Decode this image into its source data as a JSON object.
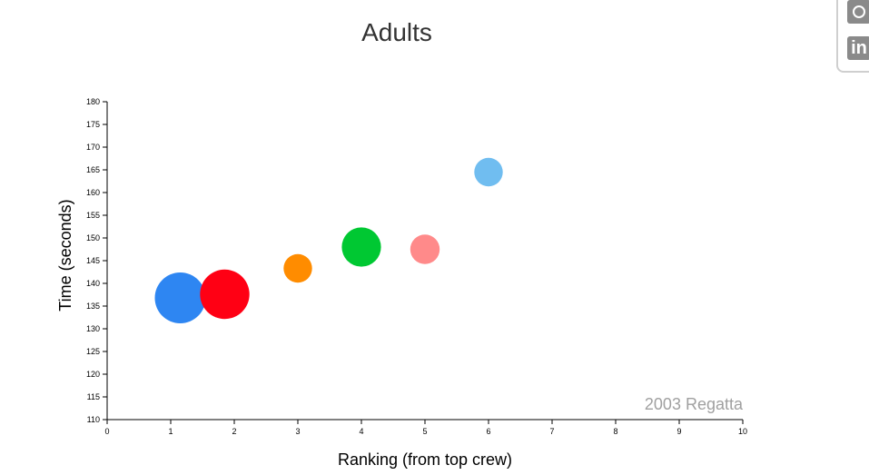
{
  "chart_data": {
    "type": "scatter",
    "title": "Adults",
    "xlabel": "Ranking (from top crew)",
    "ylabel": "Time (seconds)",
    "annotation": "2003 Regatta",
    "xlim": [
      0,
      10
    ],
    "ylim": [
      110,
      180
    ],
    "x_ticks": [
      0,
      1,
      2,
      3,
      4,
      5,
      6,
      7,
      8,
      9,
      10
    ],
    "y_ticks": [
      110,
      115,
      120,
      125,
      130,
      135,
      140,
      145,
      150,
      155,
      160,
      165,
      170,
      175,
      180
    ],
    "grid": false,
    "points": [
      {
        "x": 1.15,
        "y": 136.8,
        "size": 1.0,
        "color": "#2e86f2"
      },
      {
        "x": 1.85,
        "y": 137.6,
        "size": 0.97,
        "color": "#ff0014"
      },
      {
        "x": 3.0,
        "y": 143.3,
        "size": 0.56,
        "color": "#ff8c00"
      },
      {
        "x": 4.0,
        "y": 148.0,
        "size": 0.77,
        "color": "#00c832"
      },
      {
        "x": 5.0,
        "y": 147.5,
        "size": 0.58,
        "color": "#ff8a8a"
      },
      {
        "x": 6.0,
        "y": 164.5,
        "size": 0.56,
        "color": "#70bdf0"
      }
    ]
  },
  "social": {
    "icons": [
      "github-icon",
      "linkedin-icon"
    ],
    "linkedin_text": "in"
  }
}
